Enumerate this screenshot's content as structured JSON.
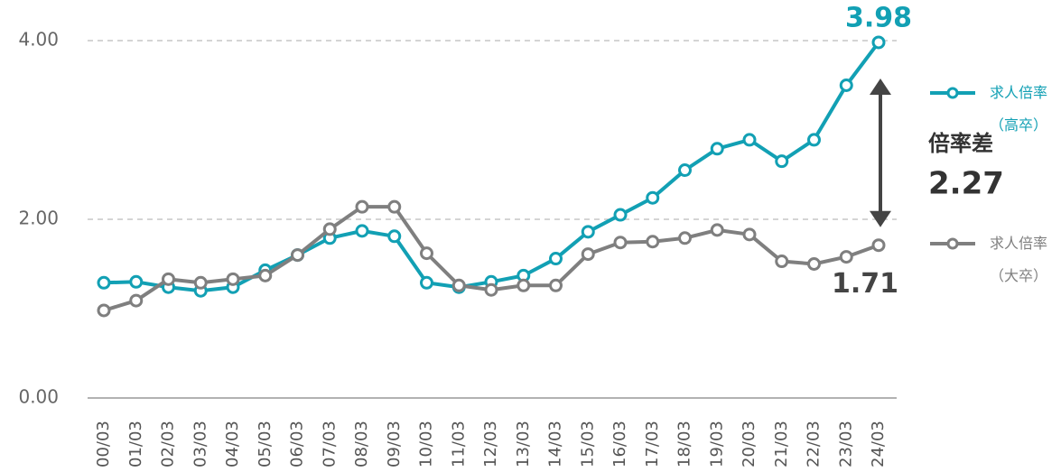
{
  "chart_data": {
    "type": "line",
    "categories": [
      "00/03",
      "01/03",
      "02/03",
      "03/03",
      "04/03",
      "05/03",
      "06/03",
      "07/03",
      "08/03",
      "09/03",
      "10/03",
      "11/03",
      "12/03",
      "13/03",
      "14/03",
      "15/03",
      "16/03",
      "17/03",
      "18/03",
      "19/03",
      "20/03",
      "21/03",
      "22/03",
      "23/03",
      "24/03"
    ],
    "series": [
      {
        "name": "求人倍率（高卒）",
        "color": "#12a0b4",
        "values": [
          1.29,
          1.3,
          1.24,
          1.2,
          1.24,
          1.43,
          1.6,
          1.79,
          1.87,
          1.81,
          1.29,
          1.24,
          1.3,
          1.37,
          1.56,
          1.86,
          2.05,
          2.24,
          2.55,
          2.79,
          2.89,
          2.65,
          2.89,
          3.5,
          3.98
        ]
      },
      {
        "name": "求人倍率（大卒）",
        "color": "#7f7f7f",
        "values": [
          0.98,
          1.09,
          1.33,
          1.29,
          1.33,
          1.37,
          1.6,
          1.89,
          2.14,
          2.14,
          1.62,
          1.26,
          1.21,
          1.26,
          1.26,
          1.61,
          1.74,
          1.75,
          1.79,
          1.88,
          1.83,
          1.53,
          1.5,
          1.58,
          1.71
        ]
      }
    ],
    "annotations": [
      "倍率差",
      "2.27"
    ],
    "ylim": [
      0,
      4
    ],
    "yticks": [
      {
        "value": 0,
        "label": "0.00"
      },
      {
        "value": 2,
        "label": "2.00"
      },
      {
        "value": 4,
        "label": "4.00"
      }
    ],
    "grid": true
  }
}
